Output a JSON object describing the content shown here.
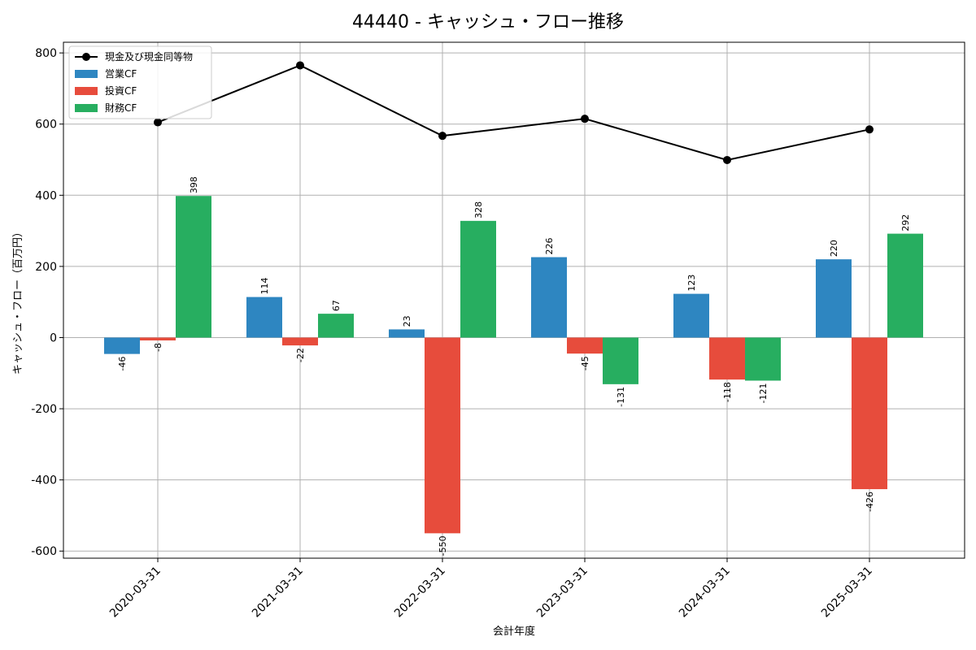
{
  "chart_data": {
    "type": "bar",
    "title": "44440 - キャッシュ・フロー推移",
    "xlabel": "会計年度",
    "ylabel": "キャッシュ・フロー（百万円）",
    "categories": [
      "2020-03-31",
      "2021-03-31",
      "2022-03-31",
      "2023-03-31",
      "2024-03-31",
      "2025-03-31"
    ],
    "ylim": [
      -620,
      830
    ],
    "yticks": [
      -600,
      -400,
      -200,
      0,
      200,
      400,
      600,
      800
    ],
    "grid": true,
    "legend_position": "top-left",
    "series": [
      {
        "name": "営業CF",
        "kind": "bar",
        "color": "#2e86c1",
        "values": [
          -46,
          114,
          23,
          226,
          123,
          220
        ]
      },
      {
        "name": "投資CF",
        "kind": "bar",
        "color": "#e74c3c",
        "values": [
          -8,
          -22,
          -550,
          -45,
          -118,
          -426
        ]
      },
      {
        "name": "財務CF",
        "kind": "bar",
        "color": "#27ae60",
        "values": [
          398,
          67,
          328,
          -131,
          -121,
          292
        ]
      }
    ],
    "line_series": {
      "name": "現金及び現金同等物",
      "kind": "line",
      "color": "#000000",
      "values": [
        605,
        765,
        567,
        615,
        499,
        585
      ]
    }
  }
}
